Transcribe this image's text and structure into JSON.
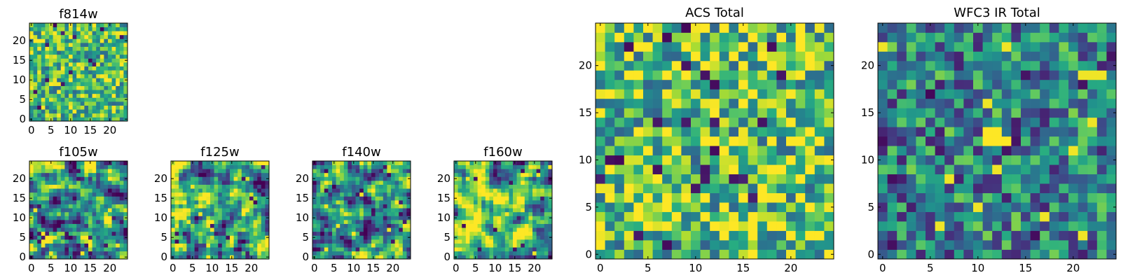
{
  "figure": {
    "colormap": "viridis",
    "colors": {
      "low": "#440154",
      "mid": "#21908d",
      "high": "#fde725"
    }
  },
  "chart_data": [
    {
      "type": "heatmap",
      "title": "f814w",
      "grid_size": 25,
      "xlim": [
        0,
        24
      ],
      "ylim": [
        0,
        24
      ],
      "xticks": [
        0,
        5,
        10,
        15,
        20
      ],
      "yticks": [
        0,
        5,
        10,
        15,
        20
      ],
      "xtick_labels": [
        "0",
        "5",
        "10",
        "15",
        "20"
      ],
      "ytick_labels": [
        "0",
        "5",
        "10",
        "15",
        "20"
      ],
      "value_range": [
        0,
        1
      ],
      "character": "uniform noise, mostly yellow-green",
      "seed": 11,
      "smooth": 0,
      "bias": 0.68,
      "spread": 0.42,
      "blobs": []
    },
    {
      "type": "heatmap",
      "title": "f105w",
      "grid_size": 25,
      "xlim": [
        0,
        24
      ],
      "ylim": [
        0,
        24
      ],
      "xticks": [
        0,
        5,
        10,
        15,
        20
      ],
      "yticks": [
        0,
        5,
        10,
        15,
        20
      ],
      "xtick_labels": [
        "0",
        "5",
        "10",
        "15",
        "20"
      ],
      "ytick_labels": [
        "0",
        "5",
        "10",
        "15",
        "20"
      ],
      "value_range": [
        0,
        1
      ],
      "character": "smoothed noise",
      "seed": 23,
      "smooth": 1,
      "bias": 0.6,
      "spread": 0.95,
      "blobs": []
    },
    {
      "type": "heatmap",
      "title": "f125w",
      "grid_size": 25,
      "xlim": [
        0,
        24
      ],
      "ylim": [
        0,
        24
      ],
      "xticks": [
        0,
        5,
        10,
        15,
        20
      ],
      "yticks": [
        0,
        5,
        10,
        15,
        20
      ],
      "xtick_labels": [
        "0",
        "5",
        "10",
        "15",
        "20"
      ],
      "ytick_labels": [
        "0",
        "5",
        "10",
        "15",
        "20"
      ],
      "value_range": [
        0,
        1
      ],
      "character": "smoothed noise",
      "seed": 37,
      "smooth": 1,
      "bias": 0.62,
      "spread": 0.95,
      "blobs": []
    },
    {
      "type": "heatmap",
      "title": "f140w",
      "grid_size": 25,
      "xlim": [
        0,
        24
      ],
      "ylim": [
        0,
        24
      ],
      "xticks": [
        0,
        5,
        10,
        15,
        20
      ],
      "yticks": [
        0,
        5,
        10,
        15,
        20
      ],
      "xtick_labels": [
        "0",
        "5",
        "10",
        "15",
        "20"
      ],
      "ytick_labels": [
        "0",
        "5",
        "10",
        "15",
        "20"
      ],
      "value_range": [
        0,
        1
      ],
      "character": "smoothed noise",
      "seed": 41,
      "smooth": 1,
      "bias": 0.6,
      "spread": 0.95,
      "blobs": []
    },
    {
      "type": "heatmap",
      "title": "f160w",
      "grid_size": 25,
      "xlim": [
        0,
        24
      ],
      "ylim": [
        0,
        24
      ],
      "xticks": [
        0,
        5,
        10,
        15,
        20
      ],
      "yticks": [
        0,
        5,
        10,
        15,
        20
      ],
      "xtick_labels": [
        "0",
        "5",
        "10",
        "15",
        "20"
      ],
      "ytick_labels": [
        "0",
        "5",
        "10",
        "15",
        "20"
      ],
      "value_range": [
        0,
        1
      ],
      "character": "smoothed noise",
      "seed": 53,
      "smooth": 1,
      "bias": 0.64,
      "spread": 0.95,
      "blobs": []
    },
    {
      "type": "heatmap",
      "title": "ACS Total",
      "grid_size": 25,
      "xlim": [
        0,
        24
      ],
      "ylim": [
        0,
        24
      ],
      "xticks": [
        0,
        5,
        10,
        15,
        20
      ],
      "yticks": [
        0,
        5,
        10,
        15,
        20
      ],
      "xtick_labels": [
        "0",
        "5",
        "10",
        "15",
        "20"
      ],
      "ytick_labels": [
        "0",
        "5",
        "10",
        "15",
        "20"
      ],
      "value_range": [
        0,
        1
      ],
      "character": "noise, mostly yellow-green with scattered dark pixels",
      "seed": 67,
      "smooth": 0,
      "bias": 0.72,
      "spread": 0.5,
      "blobs": []
    },
    {
      "type": "heatmap",
      "title": "WFC3 IR Total",
      "grid_size": 25,
      "xlim": [
        0,
        24
      ],
      "ylim": [
        0,
        24
      ],
      "xticks": [
        0,
        5,
        10,
        15,
        20
      ],
      "yticks": [
        0,
        5,
        10,
        15,
        20
      ],
      "xtick_labels": [
        "0",
        "5",
        "10",
        "15",
        "20"
      ],
      "ytick_labels": [
        "0",
        "5",
        "10",
        "15",
        "20"
      ],
      "value_range": [
        0,
        1
      ],
      "character": "noise, mostly teal with a bright source near x=11-13, y=12-13",
      "seed": 79,
      "smooth": 0,
      "bias": 0.45,
      "spread": 0.45,
      "blobs": [
        {
          "x": 11,
          "y": 12
        },
        {
          "x": 12,
          "y": 12
        },
        {
          "x": 13,
          "y": 12
        },
        {
          "x": 11,
          "y": 13
        },
        {
          "x": 12,
          "y": 13
        }
      ]
    }
  ]
}
